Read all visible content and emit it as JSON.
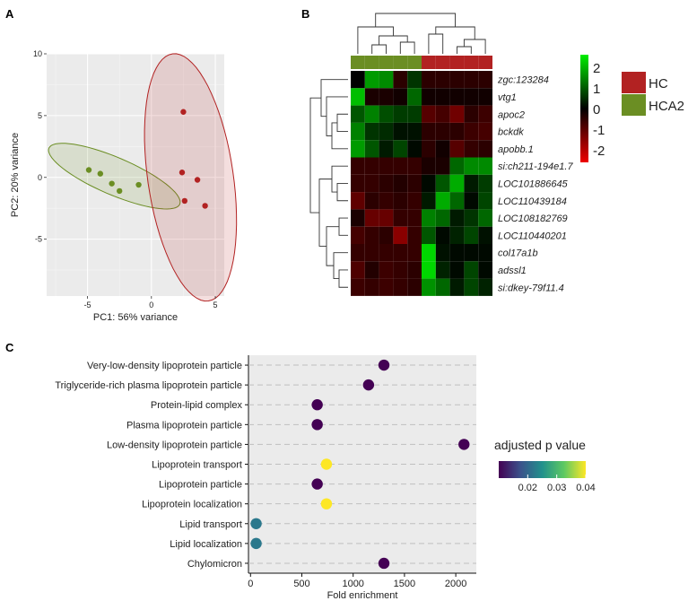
{
  "panels": {
    "a": "A",
    "b": "B",
    "c": "C"
  },
  "colors": {
    "hc": "#b22222",
    "hca2": "#6b8e23",
    "plot_bg": "#ebebeb",
    "grid": "#ffffff"
  },
  "chart_data": [
    {
      "id": "pca",
      "type": "scatter",
      "xlabel": "PC1: 56% variance",
      "ylabel": "PC2: 20% variance",
      "xlim": [
        -8.2,
        5.7
      ],
      "ylim": [
        -9.6,
        10
      ],
      "x_ticks": [
        -5,
        0,
        5
      ],
      "x_tick_labels": [
        "-5",
        "0",
        "5"
      ],
      "y_ticks": [
        -5,
        0,
        5,
        10
      ],
      "y_tick_labels": [
        "-5",
        "0",
        "5",
        "10"
      ],
      "grid": true,
      "series": [
        {
          "group": "HCA2",
          "color": "#6b8e23",
          "points": [
            [
              -4.9,
              0.6
            ],
            [
              -4.0,
              0.3
            ],
            [
              -3.1,
              -0.5
            ],
            [
              -2.5,
              -1.1
            ],
            [
              -1.0,
              -0.6
            ]
          ],
          "ellipse": {
            "cx": -2.9,
            "cy": 0.1,
            "rx": 5.6,
            "ry": 1.5,
            "angle_deg": -24
          }
        },
        {
          "group": "HC",
          "color": "#b22222",
          "points": [
            [
              2.5,
              5.3
            ],
            [
              2.4,
              0.4
            ],
            [
              3.6,
              -0.2
            ],
            [
              2.6,
              -1.9
            ],
            [
              4.2,
              -2.3
            ]
          ],
          "ellipse": {
            "cx": 3.06,
            "cy": 0.0,
            "rx": 3.35,
            "ry": 10.1,
            "angle_deg": 8
          }
        }
      ]
    },
    {
      "id": "heatmap",
      "type": "heatmap",
      "rows": [
        "zgc:123284",
        "vtg1",
        "apoc2",
        "bckdk",
        "apobb.1",
        "si:ch211-194e1.7",
        "LOC101886645",
        "LOC110439184",
        "LOC108182769",
        "LOC110440201",
        "col17a1b",
        "adssl1",
        "si:dkey-79f11.4"
      ],
      "column_groups": [
        "HCA2",
        "HCA2",
        "HCA2",
        "HCA2",
        "HCA2",
        "HC",
        "HC",
        "HC",
        "HC",
        "HC"
      ],
      "values": [
        [
          0.0,
          1.8,
          1.6,
          -0.5,
          0.6,
          -0.5,
          -0.5,
          -0.5,
          -0.5,
          -0.5
        ],
        [
          2.2,
          -0.3,
          -0.3,
          -0.2,
          1.2,
          -0.2,
          -0.2,
          -0.2,
          -0.2,
          -0.2
        ],
        [
          1.0,
          1.5,
          0.9,
          0.7,
          0.7,
          -1.0,
          -0.8,
          -1.3,
          -0.5,
          -0.7
        ],
        [
          1.5,
          0.6,
          0.5,
          0.2,
          0.2,
          -0.5,
          -0.5,
          -0.5,
          -0.7,
          -0.8
        ],
        [
          1.8,
          1.0,
          0.3,
          0.8,
          0.1,
          -0.5,
          -0.2,
          -1.0,
          -0.6,
          -0.5
        ],
        [
          -0.6,
          -0.6,
          -0.6,
          -0.6,
          -0.6,
          -0.3,
          -0.3,
          1.2,
          1.6,
          1.6
        ],
        [
          -0.6,
          -0.6,
          -0.5,
          -0.4,
          -0.5,
          0.1,
          1.0,
          2.0,
          0.3,
          0.7
        ],
        [
          -1.1,
          -0.5,
          -0.6,
          -0.5,
          -0.6,
          0.3,
          2.0,
          1.2,
          0.1,
          0.8
        ],
        [
          -0.3,
          -1.2,
          -1.2,
          -0.6,
          -0.6,
          1.5,
          1.2,
          0.3,
          0.6,
          1.2
        ],
        [
          -0.8,
          -0.6,
          -0.5,
          -1.6,
          -0.6,
          1.0,
          0.1,
          0.4,
          0.8,
          0.2
        ],
        [
          -0.6,
          -0.6,
          -0.6,
          -0.6,
          -0.6,
          2.5,
          0.2,
          0.1,
          0.1,
          0.1
        ],
        [
          -0.9,
          -0.4,
          -0.7,
          -0.6,
          -0.5,
          2.5,
          0.4,
          0.1,
          0.8,
          0.1
        ],
        [
          -0.7,
          -0.6,
          -0.7,
          -0.6,
          -0.5,
          1.7,
          1.2,
          0.3,
          0.8,
          0.4
        ]
      ],
      "colorbar_ticks": [
        "2",
        "1",
        "0",
        "-1",
        "-2"
      ],
      "colorbar_values": [
        2,
        1,
        0,
        -1,
        -2
      ],
      "color_range": [
        -2.6,
        2.6
      ],
      "legend": [
        {
          "label": "HC",
          "color": "#b22222"
        },
        {
          "label": "HCA2",
          "color": "#6b8e23"
        }
      ]
    },
    {
      "id": "enrichment",
      "type": "scatter",
      "xlabel": "Fold enrichment",
      "xlim": [
        -20,
        2200
      ],
      "x_ticks": [
        0,
        500,
        1000,
        1500,
        2000
      ],
      "x_tick_labels": [
        "0",
        "500",
        "1000",
        "1500",
        "2000"
      ],
      "categories": [
        "Very-low-density lipoprotein particle",
        "Triglyceride-rich plasma lipoprotein particle",
        "Protein-lipid complex",
        "Plasma lipoprotein particle",
        "Low-density lipoprotein particle",
        "Lipoprotein transport",
        "Lipoprotein particle",
        "Lipoprotein localization",
        "Lipid transport",
        "Lipid localization",
        "Chylomicron"
      ],
      "values": [
        1300,
        1150,
        650,
        650,
        2080,
        740,
        650,
        740,
        55,
        55,
        1300
      ],
      "padj": [
        0.01,
        0.01,
        0.01,
        0.01,
        0.01,
        0.04,
        0.01,
        0.04,
        0.022,
        0.022,
        0.01
      ],
      "legend_title": "adjusted p value",
      "legend_ticks": [
        "0.02",
        "0.03",
        "0.04"
      ],
      "legend_tick_values": [
        0.02,
        0.03,
        0.04
      ],
      "color_range": [
        0.01,
        0.04
      ],
      "legend_placement": "right"
    }
  ]
}
